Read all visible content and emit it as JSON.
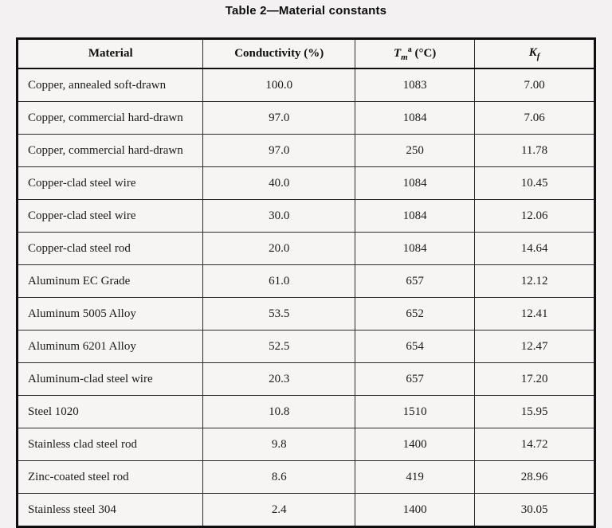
{
  "title": "Table 2—Material constants",
  "table": {
    "columns": {
      "material": "Material",
      "conductivity": "Conductivity (%)",
      "tm": {
        "symbol": "T",
        "subscript": "m",
        "superscript": "a",
        "unit": " (°C)"
      },
      "kf": {
        "symbol": "K",
        "subscript": "f"
      }
    },
    "rows": [
      {
        "material": "Copper, annealed soft-drawn",
        "conductivity": "100.0",
        "tm": "1083",
        "kf": "7.00"
      },
      {
        "material": "Copper, commercial hard-drawn",
        "conductivity": "97.0",
        "tm": "1084",
        "kf": "7.06"
      },
      {
        "material": "Copper, commercial hard-drawn",
        "conductivity": "97.0",
        "tm": "250",
        "kf": "11.78"
      },
      {
        "material": "Copper-clad steel wire",
        "conductivity": "40.0",
        "tm": "1084",
        "kf": "10.45"
      },
      {
        "material": "Copper-clad steel wire",
        "conductivity": "30.0",
        "tm": "1084",
        "kf": "12.06"
      },
      {
        "material": "Copper-clad steel rod",
        "conductivity": "20.0",
        "tm": "1084",
        "kf": "14.64"
      },
      {
        "material": "Aluminum EC Grade",
        "conductivity": "61.0",
        "tm": "657",
        "kf": "12.12"
      },
      {
        "material": "Aluminum 5005 Alloy",
        "conductivity": "53.5",
        "tm": "652",
        "kf": "12.41"
      },
      {
        "material": "Aluminum 6201 Alloy",
        "conductivity": "52.5",
        "tm": "654",
        "kf": "12.47"
      },
      {
        "material": "Aluminum-clad steel wire",
        "conductivity": "20.3",
        "tm": "657",
        "kf": "17.20"
      },
      {
        "material": "Steel 1020",
        "conductivity": "10.8",
        "tm": "1510",
        "kf": "15.95"
      },
      {
        "material": "Stainless clad steel rod",
        "conductivity": "9.8",
        "tm": "1400",
        "kf": "14.72"
      },
      {
        "material": "Zinc-coated steel rod",
        "conductivity": "8.6",
        "tm": "419",
        "kf": "28.96"
      },
      {
        "material": "Stainless steel 304",
        "conductivity": "2.4",
        "tm": "1400",
        "kf": "30.05"
      }
    ],
    "colors": {
      "page_background": "#f3f1f2",
      "cell_background": "#f6f5f3",
      "border": "#0e0e0e",
      "text": "#1a1a1a"
    }
  }
}
